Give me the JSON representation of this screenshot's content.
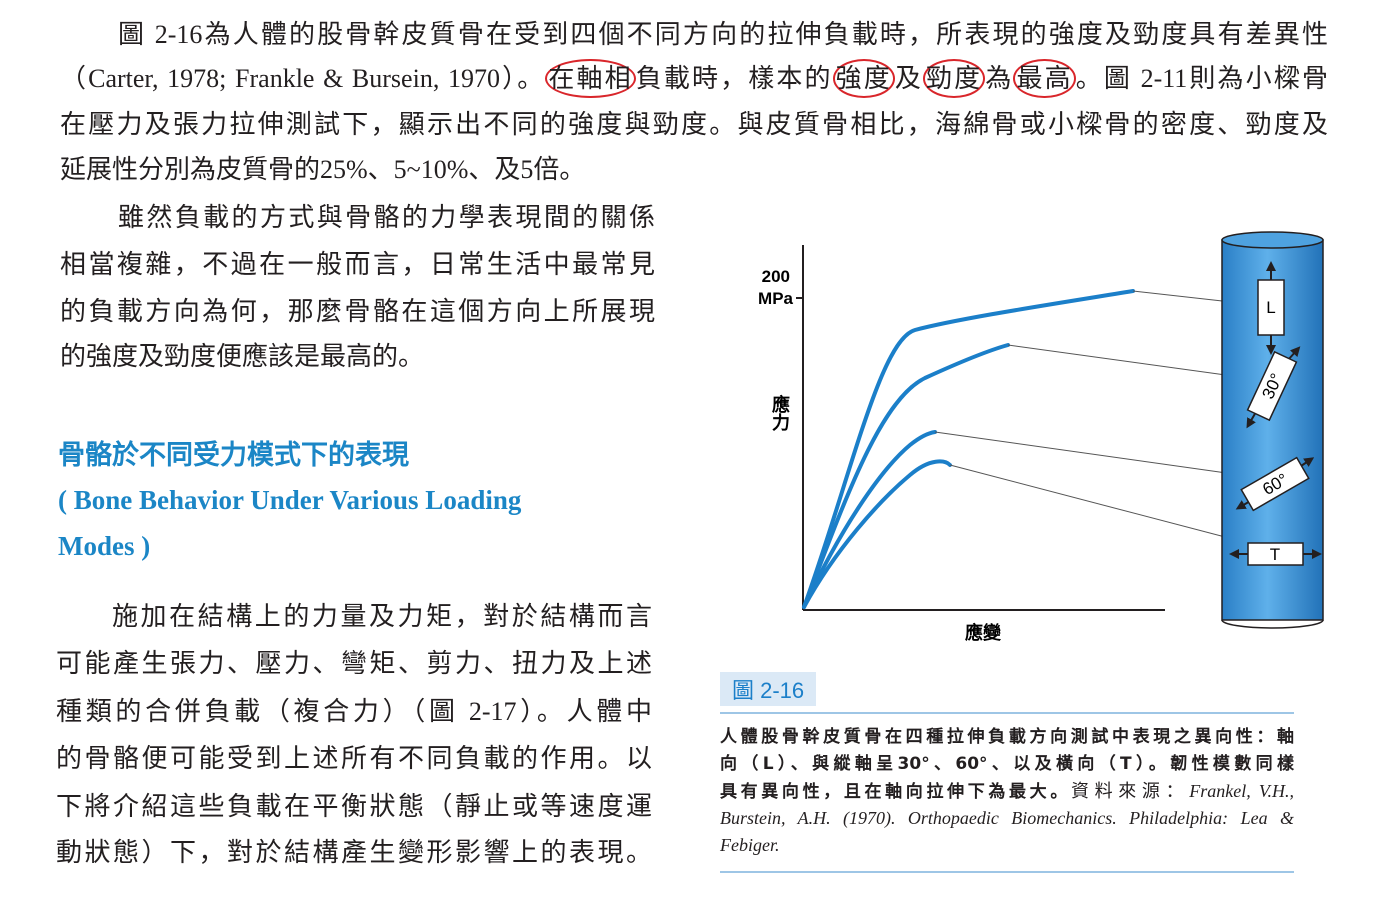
{
  "paragraph_1": {
    "lines": [
      "圖 2-16為人體的股骨幹皮質骨在受到四個不同方向的拉伸負載時，所表現的強度及勁度具有差異性",
      [
        "（Carter, 1978; Frankle & Bursein, 1970）。",
        "在軸相",
        "負載時，樣本的",
        "強度",
        "及",
        "勁度",
        "為",
        "最高",
        "。圖 2-11則為小樑骨"
      ],
      "在壓力及張力拉伸測試下，顯示出不同的強度與勁度。與皮質骨相比，海綿骨或小樑骨的密度、勁度及",
      "延展性分別為皮質骨的25%、5~10%、及5倍。"
    ]
  },
  "paragraph_2": {
    "lines": [
      "雖然負載的方式與骨骼的力學表現間的關係",
      "相當複雜，不過在一般而言，日常生活中最常見",
      "的負載方向為何，那麼骨骼在這個方向上所展現",
      "的強度及勁度便應該是最高的。"
    ]
  },
  "section_heading": {
    "chinese": "骨骼於不同受力模式下的表現",
    "english_lines": [
      "( Bone Behavior Under Various Loading",
      "Modes )"
    ]
  },
  "paragraph_3": {
    "lines": [
      "施加在結構上的力量及力矩，對於結構而言",
      "可能產生張力、壓力、彎矩、剪力、扭力及上述",
      "種類的合併負載（複合力）（圖 2-17）。人體中",
      "的骨骼便可能受到上述所有不同負載的作用。以",
      "下將介紹這些負載在平衡狀態（靜止或等速度運",
      "動狀態）下，對於結構產生變形影響上的表現。"
    ]
  },
  "figure": {
    "y_tick": {
      "value": "200",
      "unit": "MPa"
    },
    "y_axis_label": "應力",
    "x_axis_label": "應變",
    "specimen_labels": [
      "L",
      "30°",
      "60°",
      "T"
    ],
    "label": "圖 2-16",
    "caption": {
      "lines": [
        "人體股骨幹皮質骨在四種拉伸負載方向測試中表現之異向性：軸",
        "向（L）、與縱軸呈30°、60°、以及橫向（T）。韌性模數同樣",
        "具有異向性，且在軸向拉伸下為最大。"
      ],
      "source_label": "資料來源：",
      "source_lines": [
        "Frankel, V.H.,",
        "Burstein, A.H. (1970). Orthopaedic Biomechanics. Philadelphia: Lea &",
        "Febiger."
      ]
    }
  }
}
